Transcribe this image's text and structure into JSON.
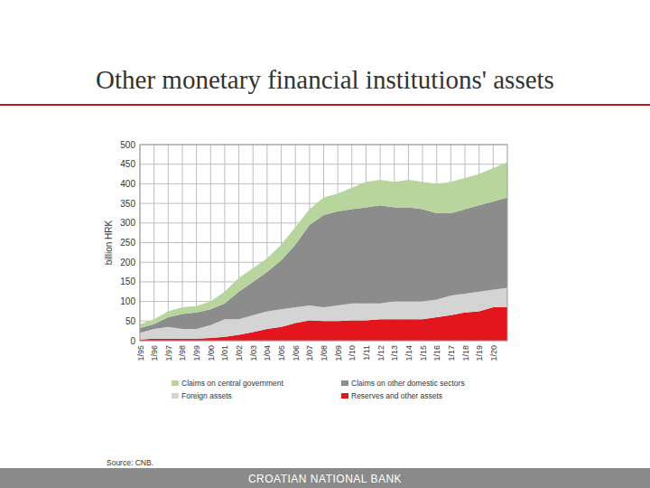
{
  "chart_data": {
    "type": "area",
    "stacked": true,
    "title": "Other monetary financial institutions' assets",
    "y_label": "billion HRK",
    "source": "Source: CNB.",
    "footer": "CROATIAN NATIONAL BANK",
    "categories": [
      "1/95",
      "1/96",
      "1/97",
      "1/98",
      "1/99",
      "1/00",
      "1/01",
      "1/02",
      "1/03",
      "1/04",
      "1/05",
      "1/06",
      "1/07",
      "1/08",
      "1/09",
      "1/10",
      "1/11",
      "1/12",
      "1/13",
      "1/14",
      "1/15",
      "1/16",
      "1/17",
      "1/18",
      "1/19",
      "1/20",
      null
    ],
    "series": [
      {
        "name": "Claims on central government",
        "color": "#b7d59c",
        "values": [
          10,
          13,
          15,
          17,
          16,
          20,
          30,
          35,
          35,
          35,
          40,
          45,
          40,
          45,
          45,
          55,
          65,
          65,
          65,
          70,
          70,
          75,
          80,
          80,
          80,
          85,
          90
        ]
      },
      {
        "name": "Claims on other domestic sectors",
        "color": "#8c8c8c",
        "values": [
          12,
          12,
          25,
          38,
          42,
          40,
          40,
          70,
          85,
          100,
          125,
          160,
          205,
          235,
          240,
          240,
          245,
          250,
          240,
          240,
          235,
          220,
          210,
          215,
          220,
          225,
          230
        ]
      },
      {
        "name": "Foreign assets",
        "color": "#d4d4d4",
        "values": [
          17,
          25,
          30,
          25,
          25,
          33,
          45,
          40,
          43,
          45,
          45,
          40,
          38,
          35,
          40,
          43,
          43,
          40,
          45,
          45,
          45,
          45,
          50,
          48,
          50,
          45,
          50
        ]
      },
      {
        "name": "Reserves and other assets",
        "color": "#e3161d",
        "values": [
          3,
          5,
          5,
          5,
          5,
          7,
          10,
          15,
          22,
          30,
          35,
          45,
          52,
          50,
          50,
          52,
          52,
          55,
          55,
          55,
          55,
          60,
          65,
          72,
          75,
          85,
          85
        ]
      }
    ],
    "ylim": [
      0,
      500
    ],
    "yticks": [
      0,
      50,
      100,
      150,
      200,
      250,
      300,
      350,
      400,
      450,
      500
    ],
    "grid": true,
    "legend": "bottom"
  }
}
